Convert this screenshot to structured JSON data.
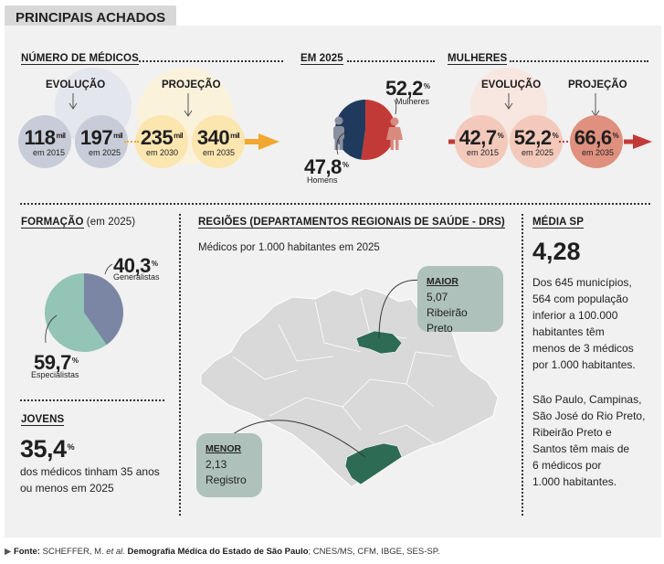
{
  "header": {
    "tab_title": "PRINCIPAIS ACHADOS"
  },
  "medicos": {
    "title": "NÚMERO DE MÉDICOS",
    "evolucao_label": "EVOLUÇÃO",
    "projecao_label": "PROJEÇÃO",
    "unit": "mil",
    "items": [
      {
        "value": "118",
        "year": "em 2015"
      },
      {
        "value": "197",
        "year": "em 2025"
      },
      {
        "value": "235",
        "year": "em 2030"
      },
      {
        "value": "340",
        "year": "em 2035"
      }
    ]
  },
  "em2025": {
    "title": "EM 2025",
    "mulheres_value": "52,2",
    "mulheres_label": "Mulheres",
    "homens_value": "47,8",
    "homens_label": "Homens",
    "pct": "%",
    "colors": {
      "mulheres": "#c23a38",
      "homens": "#1f3a5c"
    }
  },
  "mulheres": {
    "title": "MULHERES",
    "evolucao_label": "EVOLUÇÃO",
    "projecao_label": "PROJEÇÃO",
    "pct": "%",
    "items": [
      {
        "value": "42,7",
        "year": "em 2015"
      },
      {
        "value": "52,2",
        "year": "em 2025"
      },
      {
        "value": "66,6",
        "year": "em 2035"
      }
    ]
  },
  "formacao": {
    "title": "FORMAÇÃO",
    "title_suffix": " (em 2025)",
    "generalistas_value": "40,3",
    "generalistas_label": "Generalistas",
    "especialistas_value": "59,7",
    "especialistas_label": "Especialistas",
    "pct": "%",
    "colors": {
      "generalistas": "#7a86a3",
      "especialistas": "#93c4b6"
    }
  },
  "jovens": {
    "title": "JOVENS",
    "value": "35,4",
    "pct": "%",
    "line1": "dos médicos tinham 35 anos",
    "line2": "ou menos em 2025"
  },
  "regioes": {
    "title": "REGIÕES (DEPARTAMENTOS REGIONAIS DE SAÚDE - DRS)",
    "subtitle": "Médicos por 1.000 habitantes em 2025",
    "maior": {
      "label": "MAIOR",
      "value": "5,07",
      "name": "Ribeirão Preto"
    },
    "menor": {
      "label": "MENOR",
      "value": "2,13",
      "name": "Registro"
    },
    "colors": {
      "highlight": "#2e6b55",
      "map": "#d9d9d9",
      "card": "#aec1bb"
    }
  },
  "media": {
    "title": "MÉDIA SP",
    "value": "4,28",
    "p1": [
      "Dos 645 municípios,",
      "564 com população",
      "inferior a 100.000",
      "habitantes têm",
      "menos de 3 médicos",
      "por 1.000 habitantes."
    ],
    "p2": [
      "São Paulo, Campinas,",
      "São José do Rio Preto,",
      "Ribeirão Preto e",
      "Santos têm mais de",
      "6 médicos por",
      "1.000 habitantes."
    ]
  },
  "source": {
    "label": "Fonte:",
    "authors": " SCHEFFER, M. ",
    "etal": "et al.",
    "work": " Demografia Médica do Estado de São Paulo",
    "rest": "; CNES/MS, CFM, IBGE, SES-SP."
  },
  "chart_data": [
    {
      "type": "pie",
      "title": "EM 2025",
      "categories": [
        "Mulheres",
        "Homens"
      ],
      "values": [
        52.2,
        47.8
      ]
    },
    {
      "type": "pie",
      "title": "FORMAÇÃO (em 2025)",
      "categories": [
        "Generalistas",
        "Especialistas"
      ],
      "values": [
        40.3,
        59.7
      ]
    },
    {
      "type": "line",
      "title": "NÚMERO DE MÉDICOS (mil)",
      "x": [
        2015,
        2025,
        2030,
        2035
      ],
      "values": [
        118,
        197,
        235,
        340
      ]
    },
    {
      "type": "line",
      "title": "MULHERES (%)",
      "x": [
        2015,
        2025,
        2035
      ],
      "values": [
        42.7,
        52.2,
        66.6
      ]
    }
  ]
}
